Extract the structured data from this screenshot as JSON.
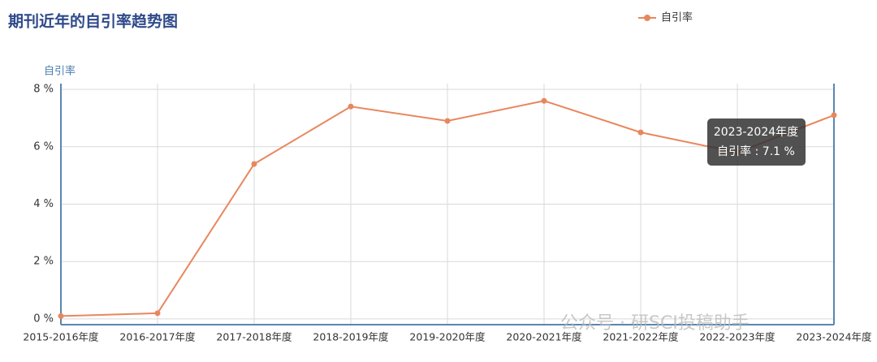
{
  "chart_data": {
    "type": "line",
    "title": "期刊近年的自引率趋势图",
    "y_label": "自引率",
    "categories": [
      "2015-2016年度",
      "2016-2017年度",
      "2017-2018年度",
      "2018-2019年度",
      "2019-2020年度",
      "2020-2021年度",
      "2021-2022年度",
      "2022-2023年度",
      "2023-2024年度"
    ],
    "series": [
      {
        "name": "自引率",
        "color": "#e8875e",
        "values": [
          0.1,
          0.2,
          5.4,
          7.4,
          6.9,
          7.6,
          6.5,
          5.8,
          7.1
        ]
      }
    ],
    "ylim": [
      -0.2,
      8.2
    ],
    "yticks": [
      {
        "value": 0,
        "label": "0 %"
      },
      {
        "value": 2,
        "label": "2 %"
      },
      {
        "value": 4,
        "label": "4 %"
      },
      {
        "value": 6,
        "label": "6 %"
      },
      {
        "value": 8,
        "label": "8 %"
      }
    ],
    "grid": true,
    "legend": "top-right",
    "tooltip": {
      "title": "2023-2024年度",
      "label": "自引率 : 7.1 %"
    },
    "watermark": "公众号 · 研SCI投稿助手"
  }
}
